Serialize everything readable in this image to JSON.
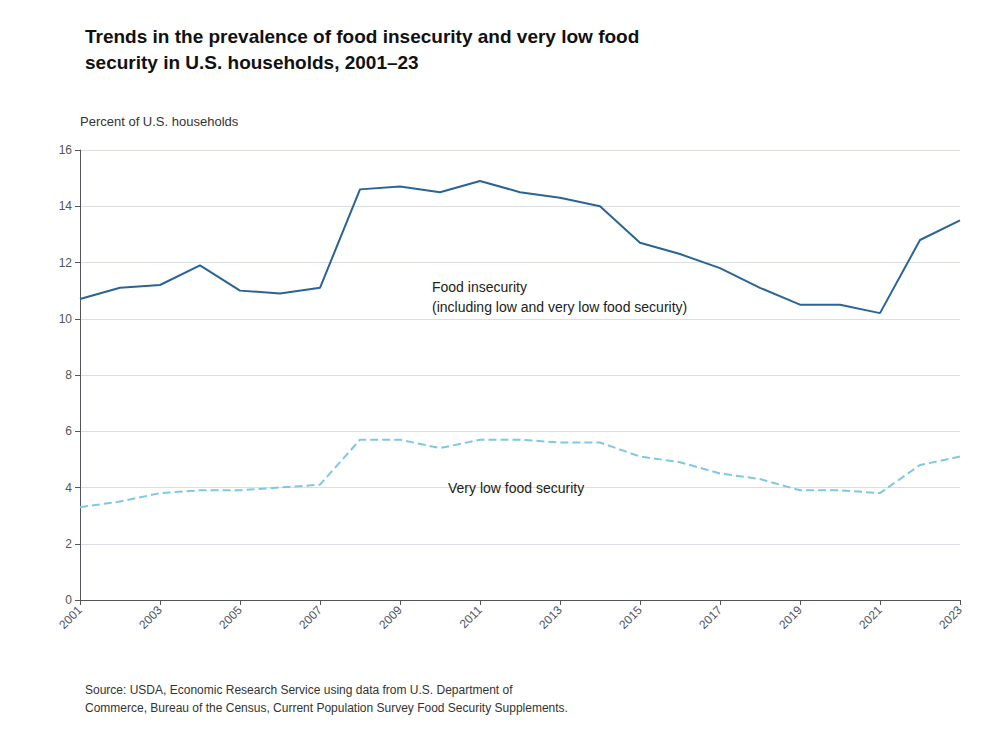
{
  "chart_data": {
    "type": "line",
    "title": "Trends in the prevalence of food insecurity and very low food\nsecurity in U.S. households, 2001–23",
    "ylabel": "Percent of U.S. households",
    "source": "Source: USDA, Economic Research Service using data from U.S. Department of\nCommerce, Bureau of the Census, Current Population Survey Food Security Supplements.",
    "x": [
      2001,
      2002,
      2003,
      2004,
      2005,
      2006,
      2007,
      2008,
      2009,
      2010,
      2011,
      2012,
      2013,
      2014,
      2015,
      2016,
      2017,
      2018,
      2019,
      2020,
      2021,
      2022,
      2023
    ],
    "series": [
      {
        "color": "#2a6496",
        "line_style": "solid",
        "values": [
          10.7,
          11.1,
          11.2,
          11.9,
          11.0,
          10.9,
          11.1,
          14.6,
          14.7,
          14.5,
          14.9,
          14.5,
          14.3,
          14.0,
          12.7,
          12.3,
          11.8,
          11.1,
          10.5,
          10.5,
          10.2,
          12.8,
          13.5
        ]
      },
      {
        "color": "#7ec8e3",
        "line_style": "dashed",
        "values": [
          3.3,
          3.5,
          3.8,
          3.9,
          3.9,
          4.0,
          4.1,
          5.7,
          5.7,
          5.4,
          5.7,
          5.7,
          5.6,
          5.6,
          5.1,
          4.9,
          4.5,
          4.3,
          3.9,
          3.9,
          3.8,
          4.8,
          5.1
        ]
      }
    ],
    "xlim": [
      2001,
      2023
    ],
    "xticks": [
      2001,
      2003,
      2005,
      2007,
      2009,
      2011,
      2013,
      2015,
      2017,
      2019,
      2021,
      2023
    ],
    "ylim": [
      0,
      16
    ],
    "yticks": [
      0,
      2,
      4,
      6,
      8,
      10,
      12,
      14,
      16
    ],
    "grid": true,
    "annotations": [
      {
        "text": "Food insecurity\n(including low and very low food security)",
        "x": 2009.8,
        "y": 11.5
      },
      {
        "text": "Very low food security",
        "x": 2010.2,
        "y": 4.35
      }
    ]
  }
}
